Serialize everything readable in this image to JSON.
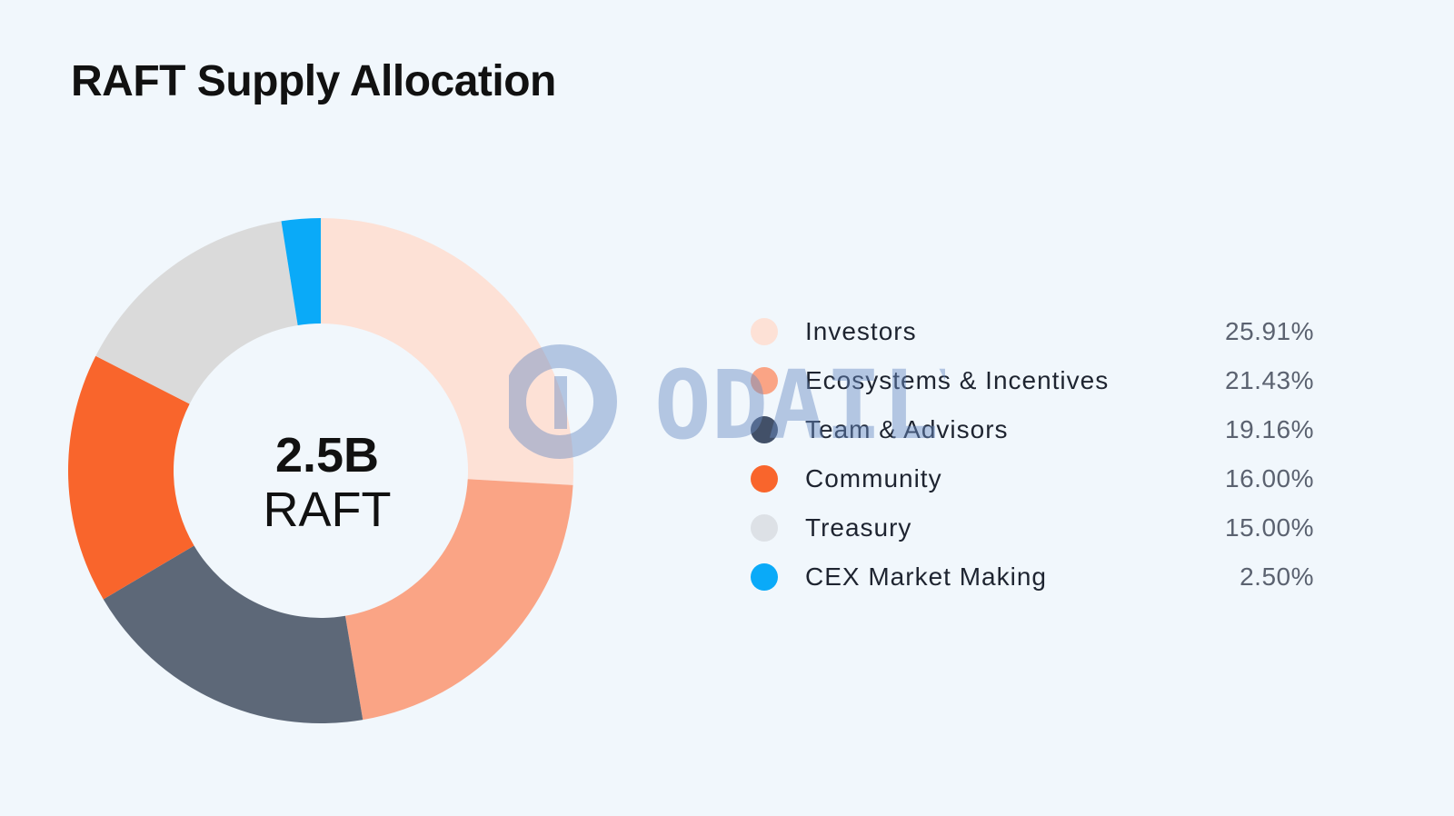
{
  "chart_data": {
    "type": "pie",
    "title": "RAFT Supply Allocation",
    "center_label": {
      "amount": "2.5B",
      "unit": "RAFT"
    },
    "categories": [
      "Investors",
      "Ecosystems & Incentives",
      "Team & Advisors",
      "Community",
      "Treasury",
      "CEX Market Making"
    ],
    "values": [
      25.91,
      21.43,
      19.16,
      16.0,
      15.0,
      2.5
    ],
    "value_labels": [
      "25.91%",
      "21.43%",
      "19.16%",
      "16.00%",
      "15.00%",
      "2.50%"
    ],
    "colors": [
      "#fde1d6",
      "#faa485",
      "#5d6878",
      "#f9652c",
      "#dadada",
      "#0aaaf8"
    ],
    "legend_colors": [
      "#fde1d6",
      "#faa485",
      "#425068",
      "#f9652c",
      "#dde1e6",
      "#0aaaf8"
    ],
    "legend": "right"
  },
  "watermark": {
    "text": "ODAILY",
    "color": "#6a8cc4"
  }
}
